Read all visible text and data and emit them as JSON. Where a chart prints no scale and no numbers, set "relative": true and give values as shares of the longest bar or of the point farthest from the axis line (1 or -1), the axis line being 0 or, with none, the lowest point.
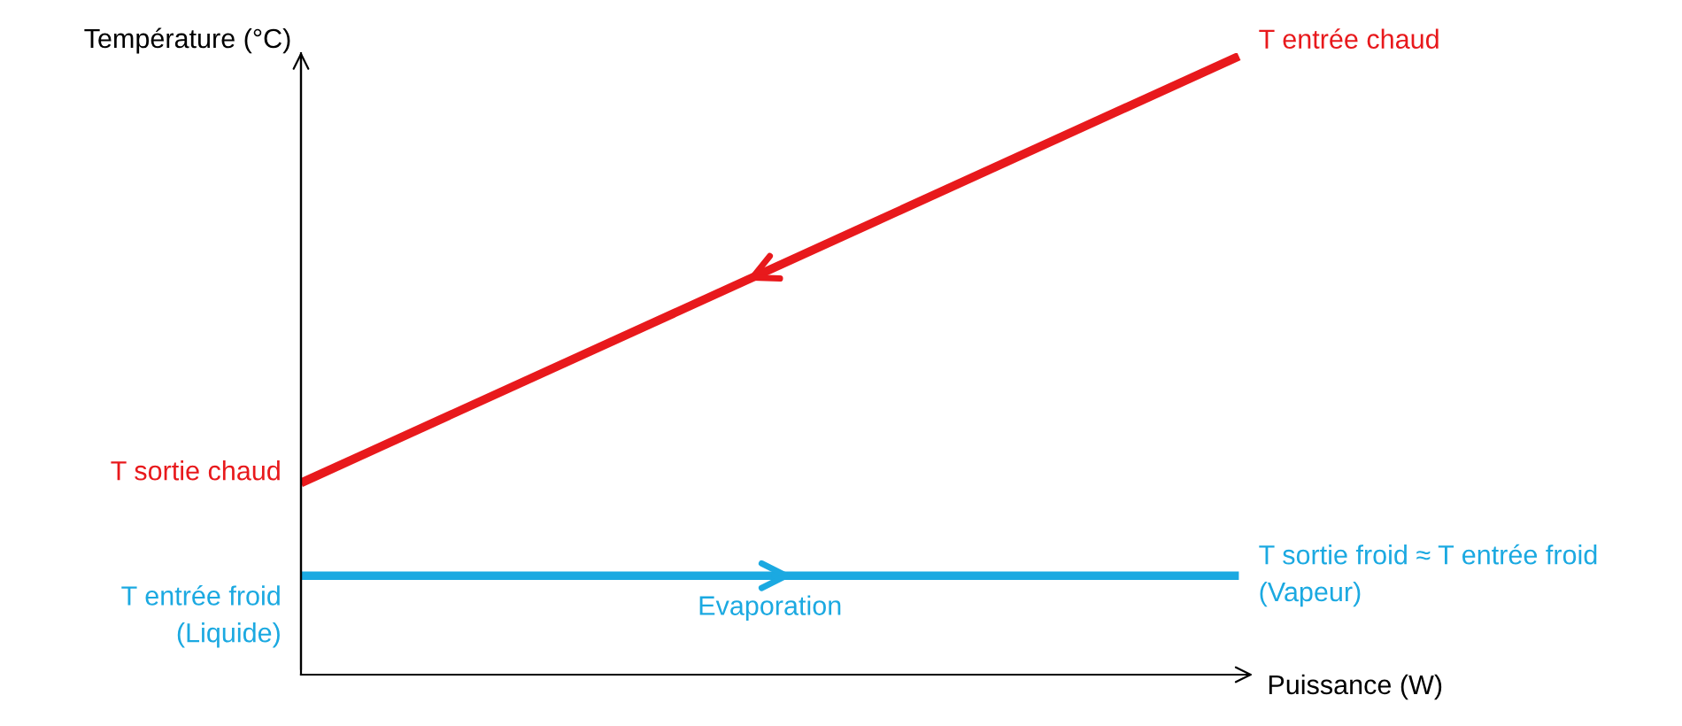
{
  "chart_data": {
    "type": "line",
    "relative": true,
    "xlabel": "Puissance (W)",
    "ylabel": "Température (°C)",
    "categories": [
      null,
      null
    ],
    "series": [
      {
        "color": "#e8191c",
        "values": [
          0.31,
          1.0
        ]
      },
      {
        "color": "#1ba9e1",
        "values": [
          0.16,
          0.16
        ]
      }
    ],
    "annotations": [
      "T sortie chaud",
      "T entrée chaud",
      "T entrée froid\n(Liquide)",
      "T sortie froid ≈ T entrée froid\n(Vapeur)",
      "Evaporation"
    ],
    "grid": false,
    "legend": false,
    "marker": "none",
    "line_style": "solid"
  }
}
